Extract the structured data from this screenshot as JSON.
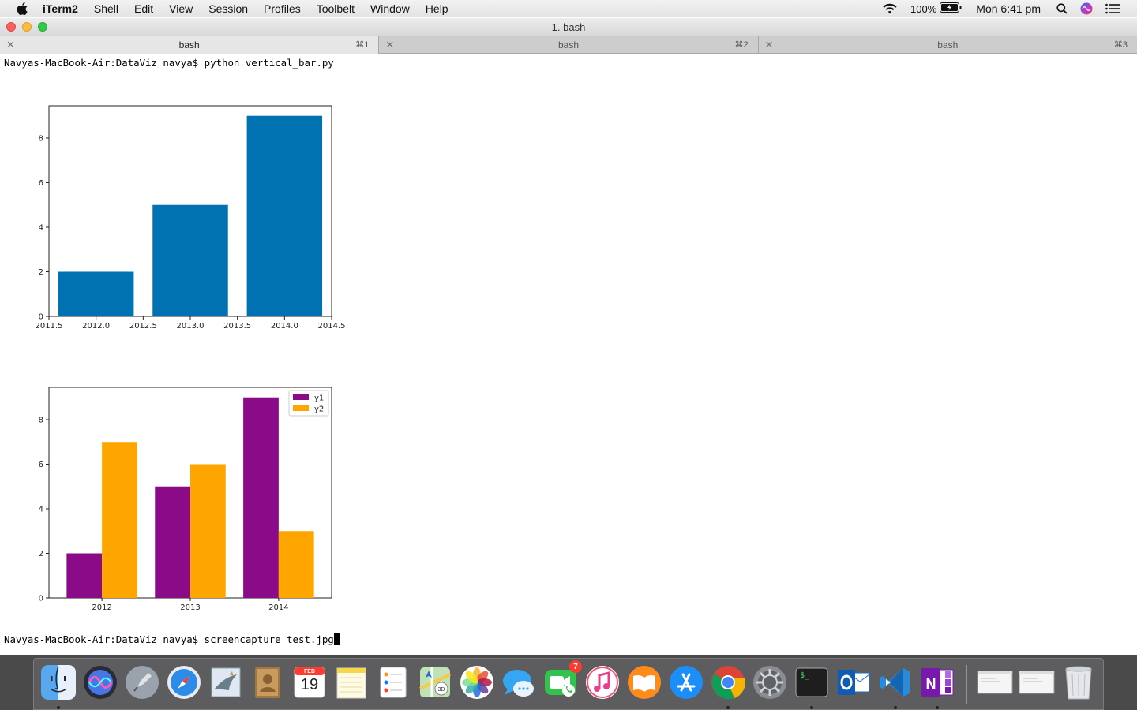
{
  "menubar": {
    "app_name": "iTerm2",
    "items": [
      "Shell",
      "Edit",
      "View",
      "Session",
      "Profiles",
      "Toolbelt",
      "Window",
      "Help"
    ],
    "battery": "100%",
    "clock": "Mon 6:41 pm"
  },
  "window": {
    "title": "1. bash"
  },
  "tabs": [
    {
      "label": "bash",
      "shortcut": "⌘1",
      "active": true
    },
    {
      "label": "bash",
      "shortcut": "⌘2",
      "active": false
    },
    {
      "label": "bash",
      "shortcut": "⌘3",
      "active": false
    }
  ],
  "terminal": {
    "line1": "Navyas-MacBook-Air:DataViz navya$ python vertical_bar.py",
    "line2": "Navyas-MacBook-Air:DataViz navya$ screencapture test.jpg"
  },
  "chart_data": [
    {
      "type": "bar",
      "x": [
        2012.0,
        2013.0,
        2014.0
      ],
      "values": [
        2,
        5,
        9
      ],
      "color": "#0072b2",
      "xlim": [
        2011.5,
        2014.5
      ],
      "ylim": [
        0,
        9.45
      ],
      "xticks": [
        "2011.5",
        "2012.0",
        "2012.5",
        "2013.0",
        "2013.5",
        "2014.0",
        "2014.5"
      ],
      "yticks": [
        "0",
        "2",
        "4",
        "6",
        "8"
      ],
      "title": "",
      "xlabel": "",
      "ylabel": "",
      "grid": false
    },
    {
      "type": "bar",
      "categories": [
        "2012",
        "2013",
        "2014"
      ],
      "series": [
        {
          "name": "y1",
          "values": [
            2,
            5,
            9
          ],
          "color": "#8b0a88"
        },
        {
          "name": "y2",
          "values": [
            7,
            6,
            3
          ],
          "color": "#ffa500"
        }
      ],
      "ylim": [
        0,
        9.45
      ],
      "yticks": [
        "0",
        "2",
        "4",
        "6",
        "8"
      ],
      "legend": "top-right",
      "title": "",
      "xlabel": "",
      "ylabel": "",
      "grid": false
    }
  ],
  "dock": {
    "apps": [
      {
        "name": "finder-icon",
        "running": true
      },
      {
        "name": "siri-icon",
        "running": false
      },
      {
        "name": "launchpad-icon",
        "running": false
      },
      {
        "name": "safari-icon",
        "running": false
      },
      {
        "name": "mail-icon",
        "running": false
      },
      {
        "name": "contacts-icon",
        "running": false
      },
      {
        "name": "calendar-icon",
        "running": false,
        "month": "FEB",
        "day": "19"
      },
      {
        "name": "notes-icon",
        "running": false
      },
      {
        "name": "reminders-icon",
        "running": false
      },
      {
        "name": "maps-icon",
        "running": false
      },
      {
        "name": "photos-icon",
        "running": false
      },
      {
        "name": "messages-icon",
        "running": false
      },
      {
        "name": "facetime-icon",
        "running": false,
        "badge": "7"
      },
      {
        "name": "itunes-icon",
        "running": false
      },
      {
        "name": "books-icon",
        "running": false
      },
      {
        "name": "app-store-icon",
        "running": false
      },
      {
        "name": "chrome-icon",
        "running": true
      },
      {
        "name": "system-preferences-icon",
        "running": false
      },
      {
        "name": "terminal-icon",
        "running": true
      },
      {
        "name": "outlook-icon",
        "running": false
      },
      {
        "name": "vscode-icon",
        "running": true
      },
      {
        "name": "onenote-icon",
        "running": true
      }
    ]
  }
}
